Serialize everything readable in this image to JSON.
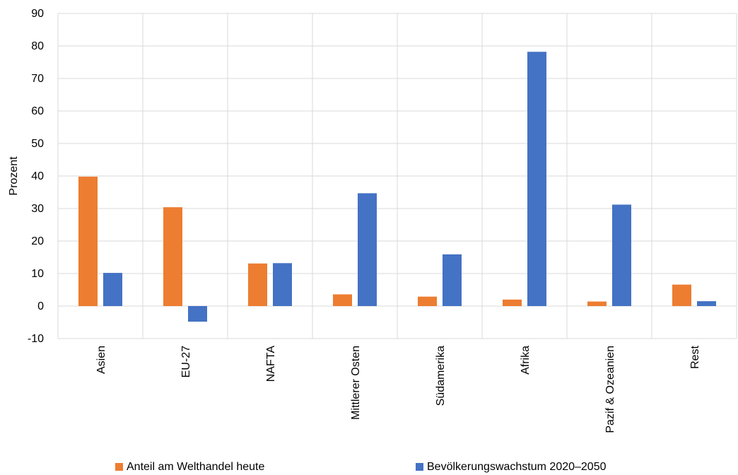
{
  "chart_data": {
    "type": "bar",
    "title": "",
    "xlabel": "",
    "ylabel": "Prozent",
    "ylim": [
      -10,
      90
    ],
    "yticks": [
      -10,
      0,
      10,
      20,
      30,
      40,
      50,
      60,
      70,
      80,
      90
    ],
    "grid": true,
    "legend_position": "bottom",
    "categories": [
      "Asien",
      "EU-27",
      "NAFTA",
      "Mittlerer Osten",
      "Südamerika",
      "Afrika",
      "Pazif & Ozeanien",
      "Rest"
    ],
    "series": [
      {
        "name": "Anteil am Welthandel heute",
        "color": "#ED7D31",
        "values": [
          39.8,
          30.4,
          13.1,
          3.6,
          2.9,
          2.0,
          1.4,
          6.6
        ]
      },
      {
        "name": "Bevölkerungswachstum 2020–2050",
        "color": "#4472C4",
        "values": [
          10.2,
          -4.8,
          13.2,
          34.7,
          15.9,
          78.2,
          31.2,
          1.5
        ]
      }
    ]
  }
}
